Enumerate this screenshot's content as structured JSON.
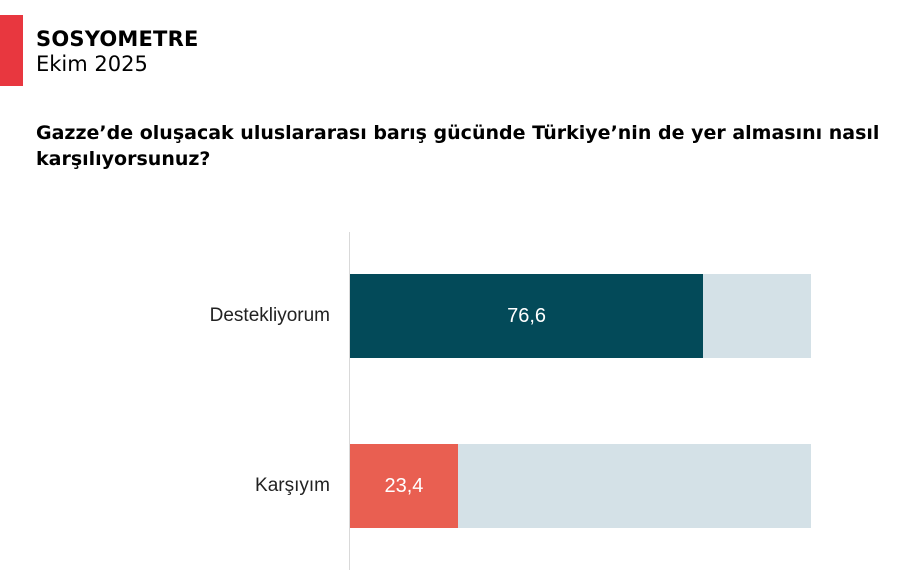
{
  "header": {
    "brand": "SOSYOMETRE",
    "date": "Ekim 2025",
    "accent_color": "#e8373f"
  },
  "chart_data": {
    "type": "bar",
    "orientation": "horizontal",
    "title": "Gazze’de oluşacak uluslararası barış gücünde Türkiye’nin de yer almasını nasıl karşılıyorsunuz?",
    "categories": [
      "Destekliyorum",
      "Karşıyım"
    ],
    "values": [
      76.6,
      23.4
    ],
    "value_labels": [
      "76,6",
      "23,4"
    ],
    "colors": [
      "#034a59",
      "#e95f51"
    ],
    "track_color": "#d4e1e7",
    "xlim": [
      0,
      100
    ],
    "grid": false
  }
}
